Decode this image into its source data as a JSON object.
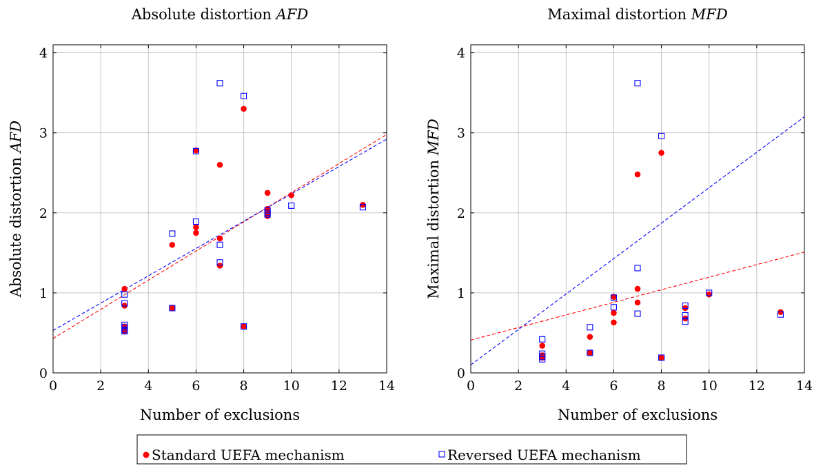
{
  "chart_data": [
    {
      "type": "scatter",
      "title": "Absolute distortion AFD",
      "title_plain": "Absolute distortion ",
      "title_math": "AFD",
      "xlabel": "Number of exclusions",
      "ylabel_plain": "Absolute distortion ",
      "ylabel_math": "AFD",
      "xlim": [
        0,
        14
      ],
      "ylim": [
        0,
        4.1
      ],
      "xticks": [
        0,
        2,
        4,
        6,
        8,
        10,
        12,
        14
      ],
      "yticks": [
        0,
        1,
        2,
        3,
        4
      ],
      "grid": true,
      "series": [
        {
          "name": "Standard UEFA mechanism",
          "marker": "circle",
          "color": "#ff0000",
          "points": [
            [
              3,
              1.05
            ],
            [
              3,
              0.84
            ],
            [
              3,
              0.58
            ],
            [
              3,
              0.55
            ],
            [
              3,
              0.52
            ],
            [
              5,
              1.6
            ],
            [
              5,
              0.81
            ],
            [
              6,
              2.78
            ],
            [
              6,
              1.82
            ],
            [
              6,
              1.75
            ],
            [
              7,
              2.6
            ],
            [
              7,
              1.68
            ],
            [
              7,
              1.34
            ],
            [
              8,
              3.3
            ],
            [
              8,
              0.58
            ],
            [
              9,
              2.25
            ],
            [
              9,
              2.05
            ],
            [
              9,
              1.99
            ],
            [
              9,
              1.96
            ],
            [
              10,
              2.22
            ],
            [
              13,
              2.1
            ]
          ],
          "trend": [
            [
              0,
              0.43
            ],
            [
              14,
              2.98
            ]
          ]
        },
        {
          "name": "Reversed UEFA mechanism",
          "marker": "square",
          "color": "#0000ff",
          "points": [
            [
              3,
              0.98
            ],
            [
              3,
              0.87
            ],
            [
              3,
              0.6
            ],
            [
              3,
              0.57
            ],
            [
              3,
              0.54
            ],
            [
              3,
              0.52
            ],
            [
              5,
              1.74
            ],
            [
              5,
              0.81
            ],
            [
              6,
              2.77
            ],
            [
              6,
              1.89
            ],
            [
              7,
              3.62
            ],
            [
              7,
              1.6
            ],
            [
              7,
              1.38
            ],
            [
              8,
              3.46
            ],
            [
              8,
              0.58
            ],
            [
              9,
              2.03
            ],
            [
              9,
              2.0
            ],
            [
              9,
              1.98
            ],
            [
              10,
              2.09
            ],
            [
              13,
              2.07
            ]
          ],
          "trend": [
            [
              0,
              0.53
            ],
            [
              14,
              2.92
            ]
          ]
        }
      ]
    },
    {
      "type": "scatter",
      "title": "Maximal distortion MFD",
      "title_plain": "Maximal distortion ",
      "title_math": "MFD",
      "xlabel": "Number of exclusions",
      "ylabel_plain": "Maximal distortion ",
      "ylabel_math": "MFD",
      "xlim": [
        0,
        14
      ],
      "ylim": [
        0,
        4.1
      ],
      "xticks": [
        0,
        2,
        4,
        6,
        8,
        10,
        12,
        14
      ],
      "yticks": [
        0,
        1,
        2,
        3,
        4
      ],
      "grid": true,
      "series": [
        {
          "name": "Standard UEFA mechanism",
          "marker": "circle",
          "color": "#ff0000",
          "points": [
            [
              3,
              0.34
            ],
            [
              3,
              0.22
            ],
            [
              3,
              0.19
            ],
            [
              5,
              0.45
            ],
            [
              5,
              0.25
            ],
            [
              6,
              0.95
            ],
            [
              6,
              0.75
            ],
            [
              6,
              0.63
            ],
            [
              7,
              2.48
            ],
            [
              7,
              1.05
            ],
            [
              7,
              0.88
            ],
            [
              8,
              2.75
            ],
            [
              8,
              0.19
            ],
            [
              9,
              0.81
            ],
            [
              9,
              0.68
            ],
            [
              10,
              0.98
            ],
            [
              13,
              0.76
            ]
          ],
          "trend": [
            [
              0,
              0.41
            ],
            [
              14,
              1.51
            ]
          ]
        },
        {
          "name": "Reversed UEFA mechanism",
          "marker": "square",
          "color": "#0000ff",
          "points": [
            [
              3,
              0.42
            ],
            [
              3,
              0.24
            ],
            [
              3,
              0.2
            ],
            [
              3,
              0.17
            ],
            [
              5,
              0.57
            ],
            [
              5,
              0.25
            ],
            [
              6,
              0.94
            ],
            [
              6,
              0.82
            ],
            [
              7,
              3.62
            ],
            [
              7,
              1.31
            ],
            [
              7,
              0.74
            ],
            [
              8,
              2.96
            ],
            [
              8,
              0.19
            ],
            [
              9,
              0.84
            ],
            [
              9,
              0.72
            ],
            [
              9,
              0.64
            ],
            [
              10,
              1.0
            ],
            [
              13,
              0.73
            ]
          ],
          "trend": [
            [
              0,
              0.1
            ],
            [
              14,
              3.2
            ]
          ]
        }
      ]
    }
  ],
  "legend": {
    "placement": "bottom-center",
    "items": [
      {
        "label": "Standard UEFA mechanism",
        "marker": "circle",
        "color": "#ff0000"
      },
      {
        "label": "Reversed UEFA mechanism",
        "marker": "square",
        "color": "#0000ff"
      }
    ]
  }
}
